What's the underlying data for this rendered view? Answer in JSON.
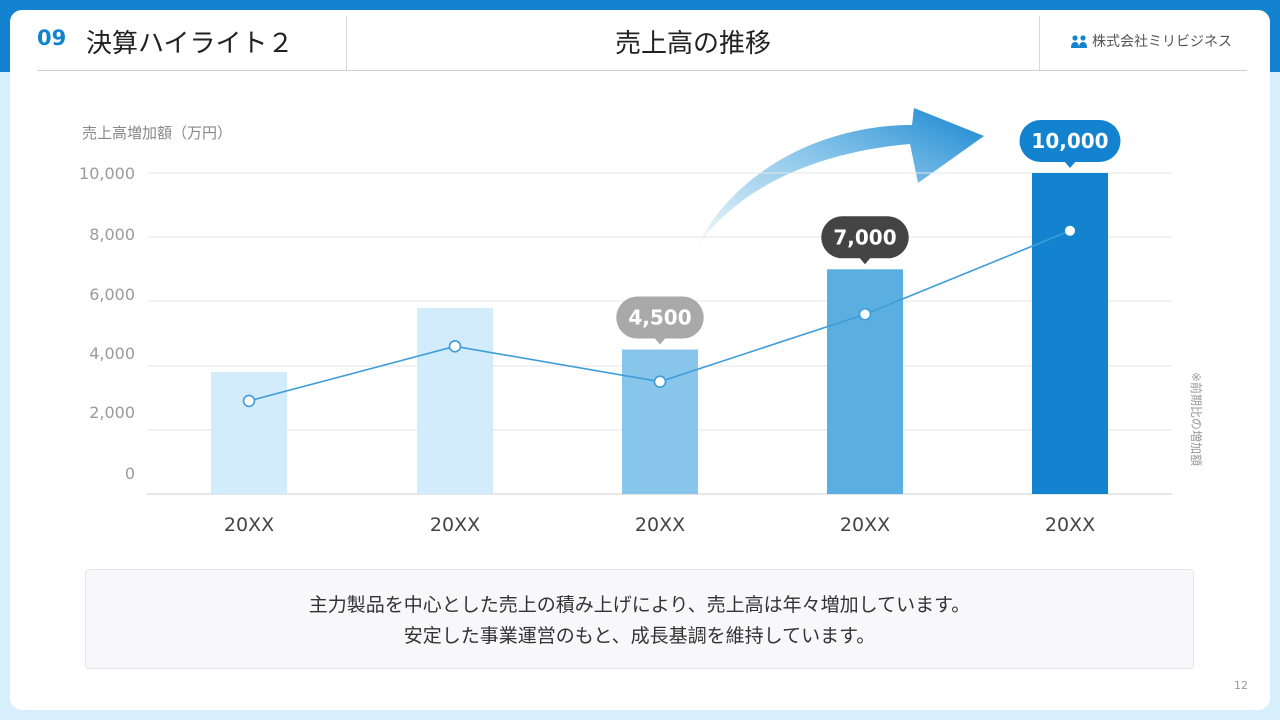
{
  "header": {
    "section_number": "09",
    "section_title": "決算ハイライト２",
    "page_title": "売上高の推移",
    "company": "株式会社ミリビジネス"
  },
  "chart_data": {
    "type": "bar",
    "ylabel": "売上高増加額（万円）",
    "ylim": [
      0,
      10000
    ],
    "yticks": [
      "0",
      "2,000",
      "4,000",
      "6,000",
      "8,000",
      "10,000"
    ],
    "categories": [
      "20XX",
      "20XX",
      "20XX",
      "20XX",
      "20XX"
    ],
    "values": [
      3800,
      5800,
      4500,
      7000,
      10000
    ],
    "value_labels": [
      "",
      "",
      "4,500",
      "7,000",
      "10,000"
    ],
    "bar_colors": [
      "#d2ecfc",
      "#d2ecfc",
      "#87c5ea",
      "#5aafe0",
      "#1383cf"
    ],
    "callout_colors": [
      "",
      "",
      "#a9a9a9",
      "#444444",
      "#1383cf"
    ],
    "line_series": {
      "values": [
        2900,
        4600,
        3500,
        5600,
        8200
      ],
      "color": "#3d9dd9",
      "filled_last_point": true
    },
    "side_note": "※前期比の増加額",
    "grid": true,
    "trend_arrow": true
  },
  "summary": {
    "line1": "主力製品を中心とした売上の積み上げにより、売上高は年々増加しています。",
    "line2": "安定した事業運営のもと、成長基調を維持しています。"
  },
  "footer": {
    "page_number": "12"
  }
}
